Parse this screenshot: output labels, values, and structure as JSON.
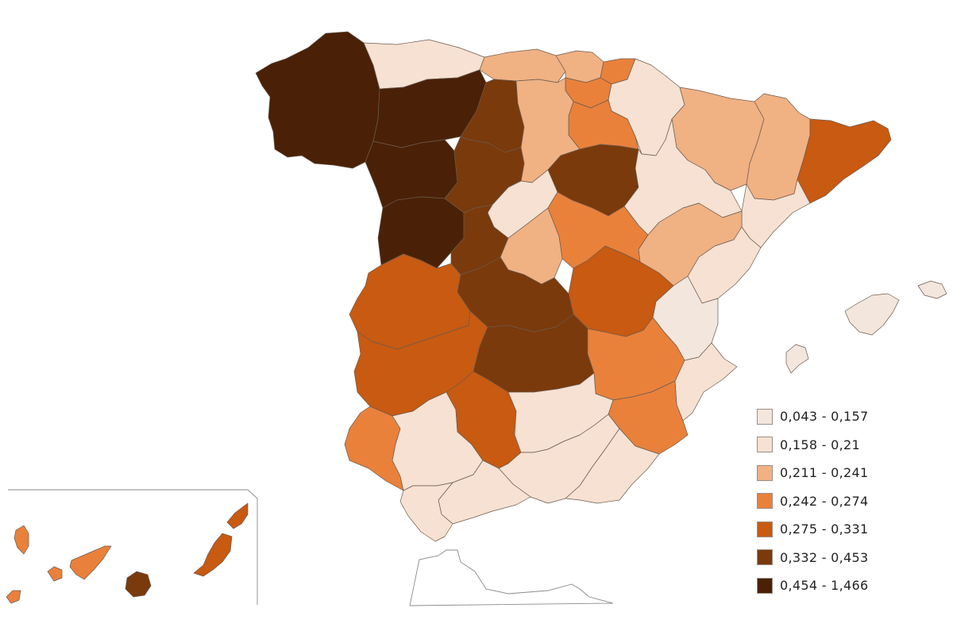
{
  "legend": {
    "items": [
      {
        "label": "0,043 - 0,157",
        "color": "#f3e6dc"
      },
      {
        "label": "0,158 - 0,21",
        "color": "#f6e1d2"
      },
      {
        "label": "0,211 - 0,241",
        "color": "#f0b183"
      },
      {
        "label": "0,242 - 0,274",
        "color": "#e9813b"
      },
      {
        "label": "0,275 - 0,331",
        "color": "#c85a12"
      },
      {
        "label": "0,332 - 0,453",
        "color": "#7a3a0c"
      },
      {
        "label": "0,454 - 1,466",
        "color": "#4a2106"
      }
    ]
  },
  "map": {
    "regions": [
      {
        "name": "galicia",
        "class": 6
      },
      {
        "name": "asturias",
        "class": 1
      },
      {
        "name": "cantabria",
        "class": 2
      },
      {
        "name": "basque-country",
        "class": 2
      },
      {
        "name": "gipuzkoa",
        "class": 3
      },
      {
        "name": "alava",
        "class": 3
      },
      {
        "name": "navarra",
        "class": 1
      },
      {
        "name": "la-rioja",
        "class": 3
      },
      {
        "name": "leon",
        "class": 6
      },
      {
        "name": "zamora",
        "class": 6
      },
      {
        "name": "salamanca",
        "class": 6
      },
      {
        "name": "palencia",
        "class": 5
      },
      {
        "name": "burgos",
        "class": 2
      },
      {
        "name": "valladolid",
        "class": 5
      },
      {
        "name": "soria",
        "class": 5
      },
      {
        "name": "segovia",
        "class": 1
      },
      {
        "name": "avila",
        "class": 5
      },
      {
        "name": "huesca",
        "class": 2
      },
      {
        "name": "zaragoza",
        "class": 1
      },
      {
        "name": "teruel",
        "class": 2
      },
      {
        "name": "lleida",
        "class": 2
      },
      {
        "name": "catalonia-east",
        "class": 4
      },
      {
        "name": "tarragona",
        "class": 1
      },
      {
        "name": "castellon",
        "class": 1
      },
      {
        "name": "valencia",
        "class": 0
      },
      {
        "name": "alicante",
        "class": 1
      },
      {
        "name": "madrid",
        "class": 2
      },
      {
        "name": "guadalajara",
        "class": 3
      },
      {
        "name": "cuenca",
        "class": 4
      },
      {
        "name": "toledo",
        "class": 5
      },
      {
        "name": "ciudad-real",
        "class": 5
      },
      {
        "name": "albacete",
        "class": 3
      },
      {
        "name": "murcia",
        "class": 3
      },
      {
        "name": "caceres",
        "class": 4
      },
      {
        "name": "badajoz",
        "class": 4
      },
      {
        "name": "huelva",
        "class": 3
      },
      {
        "name": "sevilla",
        "class": 1
      },
      {
        "name": "cordoba",
        "class": 4
      },
      {
        "name": "jaen",
        "class": 1
      },
      {
        "name": "granada",
        "class": 1
      },
      {
        "name": "almeria",
        "class": 1
      },
      {
        "name": "malaga",
        "class": 1
      },
      {
        "name": "cadiz",
        "class": 1
      },
      {
        "name": "mallorca",
        "class": 0
      },
      {
        "name": "menorca",
        "class": 0
      },
      {
        "name": "ibiza",
        "class": 0
      },
      {
        "name": "la-palma",
        "class": 3
      },
      {
        "name": "el-hierro",
        "class": 3
      },
      {
        "name": "la-gomera",
        "class": 3
      },
      {
        "name": "tenerife",
        "class": 3
      },
      {
        "name": "gran-canaria",
        "class": 5
      },
      {
        "name": "fuerteventura",
        "class": 4
      },
      {
        "name": "lanzarote",
        "class": 4
      }
    ]
  }
}
